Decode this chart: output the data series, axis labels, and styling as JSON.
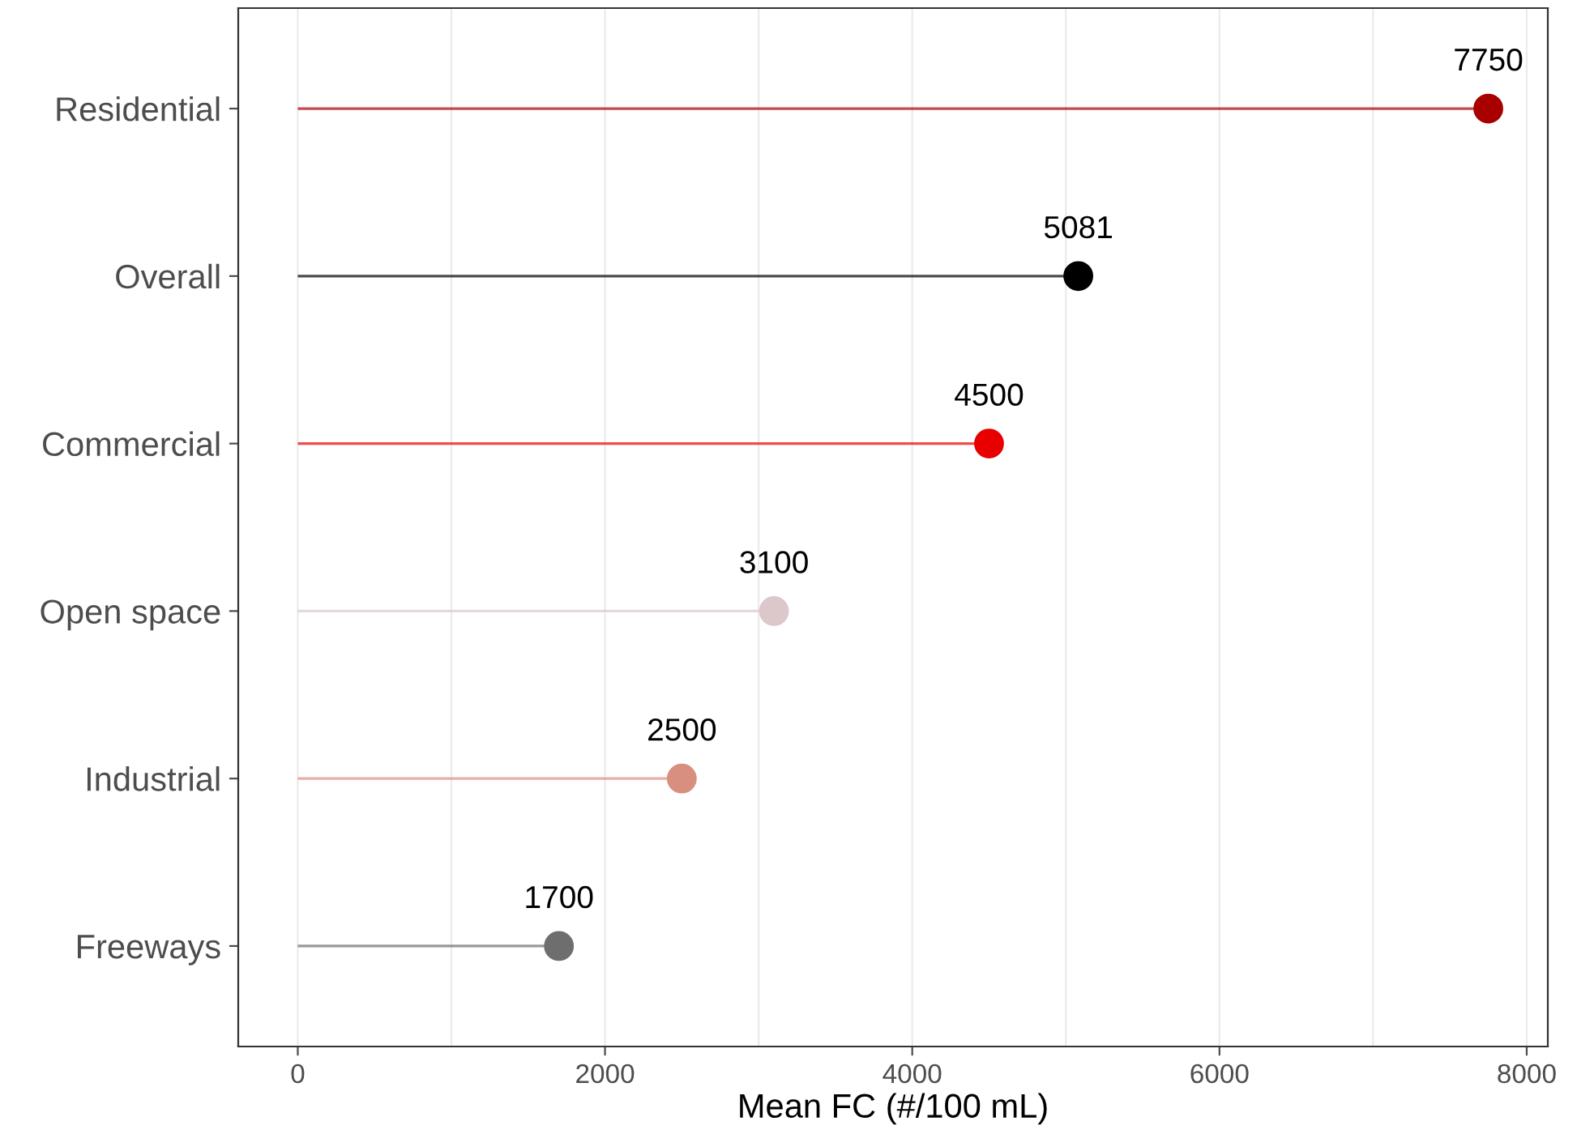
{
  "chart_data": {
    "type": "lollipop",
    "orientation": "horizontal",
    "xlabel": "Mean FC (#/100 mL)",
    "categories": [
      "Residential",
      "Overall",
      "Commercial",
      "Open space",
      "Industrial",
      "Freeways"
    ],
    "values": [
      7750,
      5081,
      4500,
      3100,
      2500,
      1700
    ],
    "colors": [
      "#a80000",
      "#000000",
      "#e80000",
      "#dcc8cb",
      "#d98f80",
      "#6e6e6e"
    ],
    "xlim": [
      -387.5,
      8137.5
    ],
    "xticks": [
      0,
      {
        "value": 1000,
        "label": null
      },
      2000,
      {
        "value": 3000,
        "label": null
      },
      4000,
      {
        "value": 5000,
        "label": null
      },
      6000,
      {
        "value": 7000,
        "label": null
      },
      8000
    ],
    "grid": "x",
    "data_labels": true,
    "marker": "circle"
  }
}
